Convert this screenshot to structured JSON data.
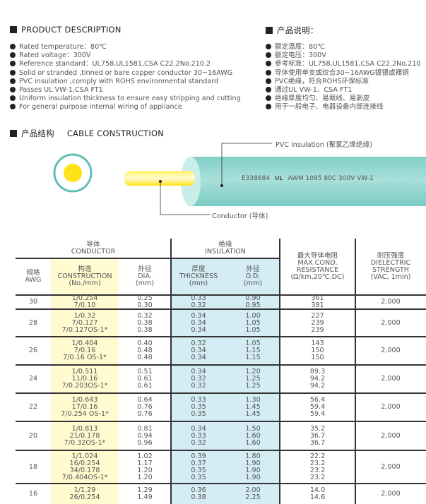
{
  "description_en": {
    "title": "PRODUCT DESCRIPTION",
    "items": [
      "Rated temperature：80℃",
      "Rated voltage：300V",
      "Reference standard：UL758,UL1581,CSA C22.2No.210.2",
      "Solid or stranded ,tinned or bare copper conductor 30~16AWG",
      "PVC insulation ,comply with ROHS environmental standard",
      "Passes UL VW-1,CSA FT1",
      "Uniform insulation thickness to ensure easy stripping and cutting",
      "For general purpose internal wiring of appliance"
    ]
  },
  "description_cn": {
    "title": "产品说明：",
    "items": [
      "额定温度：80℃",
      "额定电压：300V",
      "参考标准：UL758,UL1581,CSA C22.2No.210",
      "导体使用单支或绞合30~16AWG镀锡或裸铜",
      "PVC绝缘，符合ROHS环保标准",
      "通过UL VW-1、CSA FT1",
      "绝缘厚度均匀、易裁线、易剥皮",
      "用于一般电子、电器设备内部连接线"
    ]
  },
  "construction": {
    "title_cn": "产品结构",
    "title_en": "CABLE CONSTRUCTION",
    "insulation_label": "PVC insulation (聚氯乙烯绝缘)",
    "conductor_label": "Conductor (导体)",
    "marking": "E338684",
    "marking_ul": "UL",
    "marking_rest": "AWM 1095 80C 300V VW-1",
    "colors": {
      "insulation": "#8fd3cc",
      "conductor": "#ffe31a"
    }
  },
  "table": {
    "group_conductor": [
      "导体",
      "CONDUCTOR"
    ],
    "group_insulation": [
      "绝缘",
      "INSULATION"
    ],
    "headers": [
      [
        "规格",
        "AWG"
      ],
      [
        "构造",
        "CONSTRUCTION",
        "(No./mm)"
      ],
      [
        "外径",
        "DIA.",
        "(mm)"
      ],
      [
        "厚度",
        "THICKNESS",
        "(mm)"
      ],
      [
        "外径",
        "O.D.",
        "(mm)"
      ],
      [
        "最大导体电阻",
        "MAX.COND.",
        "RESISTANCE",
        "(Ω/km,20℃,DC)"
      ],
      [
        "耐压强度",
        "DIELECTRIC",
        "STRENGTH",
        "(VAC, 1min)"
      ]
    ],
    "rows": [
      {
        "awg": "30",
        "construction": [
          "1/0.254",
          "7/0.10"
        ],
        "dia": [
          "0.25",
          "0.30"
        ],
        "thickness": [
          "0.33",
          "0.32"
        ],
        "od": [
          "0.90",
          "0.95"
        ],
        "resistance": [
          "361",
          "381"
        ],
        "dielectric": "2,000"
      },
      {
        "awg": "28",
        "construction": [
          "1/0.32",
          "7/0.127",
          "7/0.127OS-1*"
        ],
        "dia": [
          "0.32",
          "0.38",
          "0.38"
        ],
        "thickness": [
          "0.34",
          "0.34",
          "0.34"
        ],
        "od": [
          "1.00",
          "1.05",
          "1.05"
        ],
        "resistance": [
          "227",
          "239",
          "239"
        ],
        "dielectric": "2,000"
      },
      {
        "awg": "26",
        "construction": [
          "1/0.404",
          "7/0.16",
          "7/0.16 OS-1*"
        ],
        "dia": [
          "0.40",
          "0.48",
          "0.48"
        ],
        "thickness": [
          "0.32",
          "0.34",
          "0.34"
        ],
        "od": [
          "1.05",
          "1.15",
          "1.15"
        ],
        "resistance": [
          "143",
          "150",
          "150"
        ],
        "dielectric": "2,000"
      },
      {
        "awg": "24",
        "construction": [
          "1/0.511",
          "11/0.16",
          "7/0.203OS-1*"
        ],
        "dia": [
          "0.51",
          "0.61",
          "0.61"
        ],
        "thickness": [
          "0.34",
          "0.32",
          "0.32"
        ],
        "od": [
          "1.20",
          "1.25",
          "1.25"
        ],
        "resistance": [
          "89.3",
          "94.2",
          "94.2"
        ],
        "dielectric": "2,000"
      },
      {
        "awg": "22",
        "construction": [
          "1/0.643",
          "17/0.16",
          "7/0.254 OS-1*"
        ],
        "dia": [
          "0.64",
          "0.76",
          "0.76"
        ],
        "thickness": [
          "0.33",
          "0.35",
          "0.35"
        ],
        "od": [
          "1.30",
          "1.45",
          "1.45"
        ],
        "resistance": [
          "56.4",
          "59.4",
          "59.4"
        ],
        "dielectric": "2,000"
      },
      {
        "awg": "20",
        "construction": [
          "1/0.813",
          "21/0.178",
          "7/0.32OS-1*"
        ],
        "dia": [
          "0.81",
          "0.94",
          "0.96"
        ],
        "thickness": [
          "0.34",
          "0.33",
          "0.32"
        ],
        "od": [
          "1.50",
          "1.60",
          "1.60"
        ],
        "resistance": [
          "35.2",
          "36.7",
          "36.7"
        ],
        "dielectric": "2,000"
      },
      {
        "awg": "18",
        "construction": [
          "1/1.024",
          "16/0.254",
          "34/0.178",
          "7/0.404OS-1*"
        ],
        "dia": [
          "1.02",
          "1.17",
          "1.20",
          "1.20"
        ],
        "thickness": [
          "0.39",
          "0.37",
          "0.35",
          "0.35"
        ],
        "od": [
          "1.80",
          "1.90",
          "1.90",
          "1.90"
        ],
        "resistance": [
          "22.2",
          "23.2",
          "23.2",
          "23.2"
        ],
        "dielectric": "2,000"
      },
      {
        "awg": "16",
        "construction": [
          "1/1.29",
          "26/0.254"
        ],
        "dia": [
          "1.29",
          "1.49"
        ],
        "thickness": [
          "0.36",
          "0.38"
        ],
        "od": [
          "2.00",
          "2.25"
        ],
        "resistance": [
          "14.0",
          "14.6"
        ],
        "dielectric": "2,000"
      }
    ]
  }
}
